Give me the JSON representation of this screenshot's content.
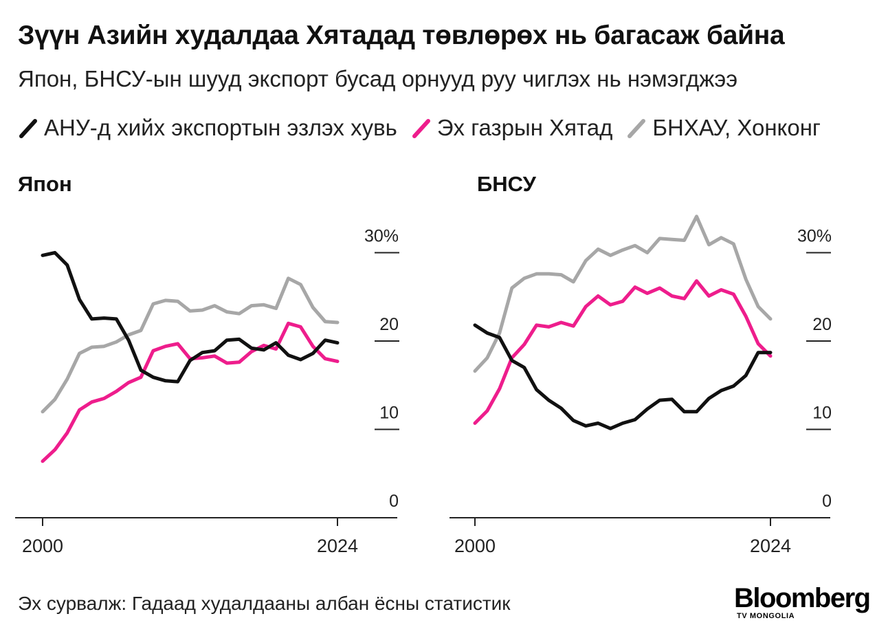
{
  "title": "Зүүн Азийн худалдаа Хятадад төвлөрөх нь багасаж байна",
  "subtitle": "Япон, БНСУ-ын шууд экспорт бусад орнууд руу чиглэх нь нэмэгджээ",
  "legend_caption": "АНУ-д хийх экспортын эзлэх хувь",
  "source": "Эх сурвалж: Гадаад худалдааны албан ёсны статистик",
  "brand": {
    "name": "Bloomberg",
    "sub": "TV MONGOLIA"
  },
  "colors": {
    "us": "#111111",
    "china": "#ee1d8c",
    "hk": "#a7a7a7"
  },
  "chart_data": [
    {
      "type": "line",
      "title": "Япон",
      "ylim": [
        0,
        30
      ],
      "yticks": [
        0,
        10,
        20,
        30
      ],
      "ytick_labels": [
        "0",
        "10",
        "20",
        "30%"
      ],
      "xlim": [
        2000,
        2024
      ],
      "xticks": [
        "2000",
        "2024"
      ],
      "x": [
        2000,
        2001,
        2002,
        2003,
        2004,
        2005,
        2006,
        2007,
        2008,
        2009,
        2010,
        2011,
        2012,
        2013,
        2014,
        2015,
        2016,
        2017,
        2018,
        2019,
        2020,
        2021,
        2022,
        2023,
        2024
      ],
      "series": [
        {
          "name": "АНУ-д хийх экспортын эзлэх хувь",
          "key": "us",
          "values": [
            29.7,
            30.0,
            28.6,
            24.7,
            22.5,
            22.6,
            22.5,
            20.1,
            16.7,
            15.9,
            15.5,
            15.4,
            17.8,
            18.7,
            18.9,
            20.1,
            20.2,
            19.2,
            19.0,
            19.8,
            18.4,
            17.9,
            18.6,
            20.1,
            19.8
          ]
        },
        {
          "name": "Эх газрын Хятад",
          "key": "china",
          "values": [
            6.4,
            7.7,
            9.6,
            12.2,
            13.1,
            13.5,
            14.3,
            15.3,
            15.9,
            18.9,
            19.4,
            19.7,
            18.0,
            18.1,
            18.3,
            17.5,
            17.6,
            18.8,
            19.5,
            19.1,
            22.0,
            21.6,
            19.4,
            18.0,
            17.7
          ]
        },
        {
          "name": "БНХАУ, Хонконг",
          "key": "hk",
          "values": [
            12.0,
            13.4,
            15.7,
            18.6,
            19.3,
            19.4,
            19.9,
            20.7,
            21.2,
            24.2,
            24.6,
            24.5,
            23.4,
            23.5,
            24.0,
            23.3,
            23.1,
            24.0,
            24.1,
            23.7,
            27.1,
            26.4,
            23.8,
            22.2,
            22.1
          ]
        }
      ]
    },
    {
      "type": "line",
      "title": "БНСУ",
      "ylim": [
        0,
        30
      ],
      "yticks": [
        0,
        10,
        20,
        30
      ],
      "ytick_labels": [
        "0",
        "10",
        "20",
        "30%"
      ],
      "xlim": [
        2000,
        2024
      ],
      "xticks": [
        "2000",
        "2024"
      ],
      "x": [
        2000,
        2001,
        2002,
        2003,
        2004,
        2005,
        2006,
        2007,
        2008,
        2009,
        2010,
        2011,
        2012,
        2013,
        2014,
        2015,
        2016,
        2017,
        2018,
        2019,
        2020,
        2021,
        2022,
        2023,
        2024
      ],
      "series": [
        {
          "name": "АНУ-д хийх экспортын эзлэх хувь",
          "key": "us",
          "values": [
            21.8,
            20.9,
            20.4,
            17.8,
            17.0,
            14.5,
            13.3,
            12.4,
            11.0,
            10.4,
            10.7,
            10.1,
            10.7,
            11.1,
            12.3,
            13.3,
            13.4,
            12.0,
            12.0,
            13.5,
            14.4,
            14.9,
            16.1,
            18.7,
            18.7
          ]
        },
        {
          "name": "Эх газрын Хятад",
          "key": "china",
          "values": [
            10.7,
            12.1,
            14.6,
            18.1,
            19.6,
            21.8,
            21.6,
            22.1,
            21.7,
            23.9,
            25.1,
            24.1,
            24.5,
            26.1,
            25.4,
            26.0,
            25.1,
            24.8,
            26.8,
            25.1,
            25.8,
            25.3,
            22.8,
            19.7,
            18.3
          ]
        },
        {
          "name": "БНХАУ, Хонконг",
          "key": "hk",
          "values": [
            16.6,
            18.1,
            20.9,
            26.0,
            27.1,
            27.6,
            27.6,
            27.5,
            26.7,
            29.1,
            30.4,
            29.7,
            30.3,
            30.8,
            30.0,
            31.6,
            31.5,
            31.4,
            34.1,
            30.9,
            31.7,
            31.0,
            27.0,
            23.9,
            22.5
          ]
        }
      ]
    }
  ]
}
